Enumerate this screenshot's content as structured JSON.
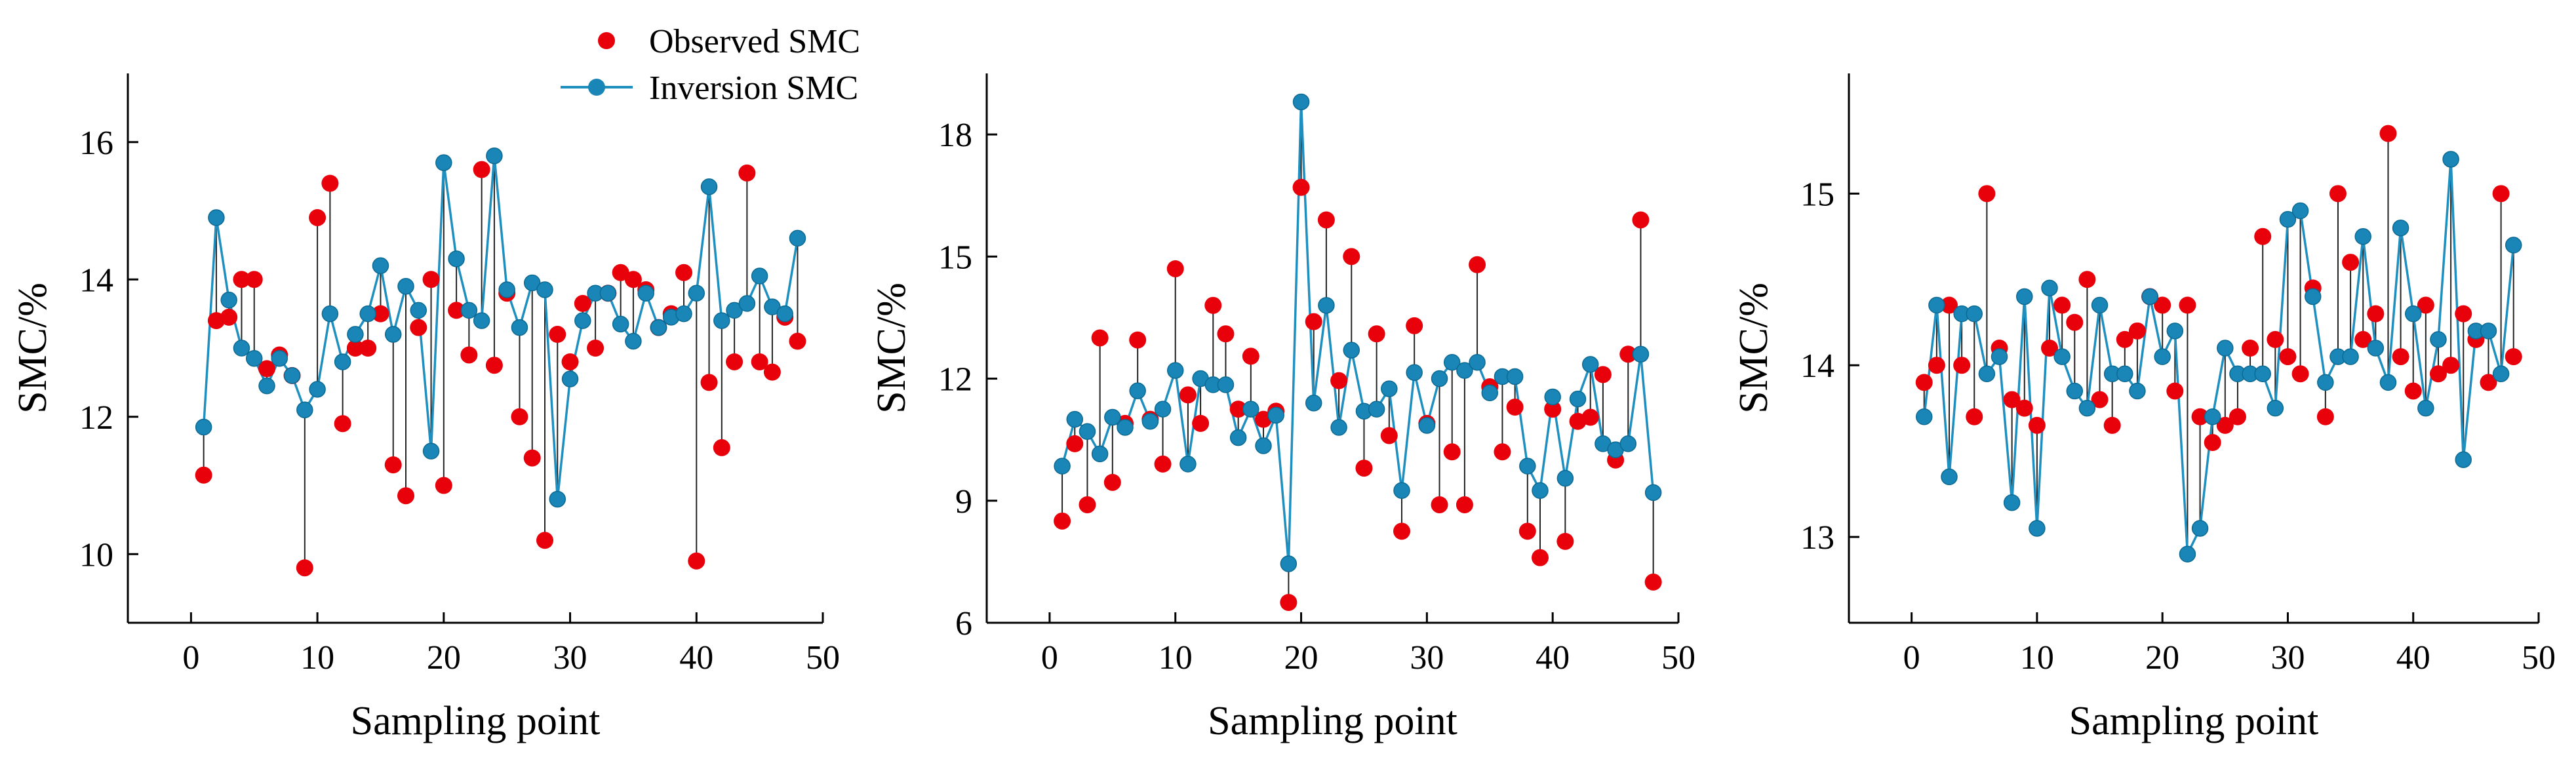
{
  "legend": {
    "observed_label": "Observed SMC",
    "inversion_label": "Inversion SMC"
  },
  "colors": {
    "observed": "#e8000b",
    "inversion_line": "#1f8fbf",
    "inversion_marker": "#1a86b7",
    "error_bar": "#222222",
    "axis": "#000000"
  },
  "chart_data": [
    {
      "type": "line",
      "xlabel": "Sampling point",
      "ylabel": "SMC/%",
      "xlim": [
        -5,
        50
      ],
      "ylim": [
        9,
        17
      ],
      "xticks": [
        0,
        10,
        20,
        30,
        40,
        50
      ],
      "yticks": [
        10,
        12,
        14,
        16
      ],
      "x": [
        1,
        2,
        3,
        4,
        5,
        6,
        7,
        8,
        9,
        10,
        11,
        12,
        13,
        14,
        15,
        16,
        17,
        18,
        19,
        20,
        21,
        22,
        23,
        24,
        25,
        26,
        27,
        28,
        29,
        30,
        31,
        32,
        33,
        34,
        35,
        36,
        37,
        38,
        39,
        40,
        41,
        42,
        43,
        44,
        45,
        46,
        47,
        48
      ],
      "series": [
        {
          "name": "Observed SMC",
          "values": [
            11.15,
            13.4,
            13.45,
            14.0,
            14.0,
            12.7,
            12.9,
            12.6,
            9.8,
            14.9,
            15.4,
            11.9,
            13.0,
            13.0,
            13.5,
            11.3,
            10.85,
            13.3,
            14.0,
            11.0,
            13.55,
            12.9,
            15.6,
            12.75,
            13.8,
            12.0,
            11.4,
            10.2,
            13.2,
            12.8,
            13.65,
            13.0,
            13.8,
            14.1,
            14.0,
            13.85,
            13.3,
            13.5,
            14.1,
            9.9,
            12.5,
            11.55,
            12.8,
            15.55,
            12.8,
            12.65,
            13.45,
            13.1
          ]
        },
        {
          "name": "Inversion SMC",
          "values": [
            11.85,
            14.9,
            13.7,
            13.0,
            12.85,
            12.45,
            12.85,
            12.6,
            12.1,
            12.4,
            13.5,
            12.8,
            13.2,
            13.5,
            14.2,
            13.2,
            13.9,
            13.55,
            11.5,
            15.7,
            14.3,
            13.55,
            13.4,
            15.8,
            13.85,
            13.3,
            13.95,
            13.85,
            10.8,
            12.55,
            13.4,
            13.8,
            13.8,
            13.35,
            13.1,
            13.8,
            13.3,
            13.45,
            13.5,
            13.8,
            15.35,
            13.4,
            13.55,
            13.65,
            14.05,
            13.6,
            13.5,
            14.6
          ]
        }
      ]
    },
    {
      "type": "line",
      "xlabel": "Sampling point",
      "ylabel": "SMC/%",
      "xlim": [
        -5,
        50
      ],
      "ylim": [
        6,
        19.5
      ],
      "xticks": [
        0,
        10,
        20,
        30,
        40,
        50
      ],
      "yticks": [
        6,
        9,
        12,
        15,
        18
      ],
      "x": [
        1,
        2,
        3,
        4,
        5,
        6,
        7,
        8,
        9,
        10,
        11,
        12,
        13,
        14,
        15,
        16,
        17,
        18,
        19,
        20,
        21,
        22,
        23,
        24,
        25,
        26,
        27,
        28,
        29,
        30,
        31,
        32,
        33,
        34,
        35,
        36,
        37,
        38,
        39,
        40,
        41,
        42,
        43,
        44,
        45,
        46,
        47,
        48
      ],
      "series": [
        {
          "name": "Observed SMC",
          "values": [
            8.5,
            10.4,
            8.9,
            13.0,
            9.45,
            10.9,
            12.95,
            11.0,
            9.9,
            14.7,
            11.6,
            10.9,
            13.8,
            13.1,
            11.25,
            12.55,
            11.0,
            11.2,
            6.5,
            16.7,
            13.4,
            15.9,
            11.95,
            15.0,
            9.8,
            13.1,
            10.6,
            8.25,
            13.3,
            10.9,
            8.9,
            10.2,
            8.9,
            14.8,
            11.8,
            10.2,
            11.3,
            8.25,
            7.6,
            11.25,
            8.0,
            10.95,
            11.05,
            12.1,
            10.0,
            12.6,
            15.9,
            7.0
          ]
        },
        {
          "name": "Inversion SMC",
          "values": [
            9.85,
            11.0,
            10.7,
            10.15,
            11.05,
            10.8,
            11.7,
            10.95,
            11.25,
            12.2,
            9.9,
            12.0,
            11.85,
            11.85,
            10.55,
            11.25,
            10.35,
            11.1,
            7.45,
            18.8,
            11.4,
            13.8,
            10.8,
            12.7,
            11.2,
            11.25,
            11.75,
            9.25,
            12.15,
            10.85,
            12.0,
            12.4,
            12.2,
            12.4,
            11.65,
            12.05,
            12.05,
            9.85,
            9.25,
            11.55,
            9.55,
            11.5,
            12.35,
            10.4,
            10.25,
            10.4,
            12.6,
            9.2
          ]
        }
      ]
    },
    {
      "type": "line",
      "xlabel": "Sampling point",
      "ylabel": "SMC/%",
      "xlim": [
        -5,
        50
      ],
      "ylim": [
        12.5,
        15.7
      ],
      "xticks": [
        0,
        10,
        20,
        30,
        40,
        50
      ],
      "yticks": [
        13,
        14,
        15
      ],
      "x": [
        1,
        2,
        3,
        4,
        5,
        6,
        7,
        8,
        9,
        10,
        11,
        12,
        13,
        14,
        15,
        16,
        17,
        18,
        19,
        20,
        21,
        22,
        23,
        24,
        25,
        26,
        27,
        28,
        29,
        30,
        31,
        32,
        33,
        34,
        35,
        36,
        37,
        38,
        39,
        40,
        41,
        42,
        43,
        44,
        45,
        46,
        47,
        48
      ],
      "series": [
        {
          "name": "Observed SMC",
          "values": [
            13.9,
            14.0,
            14.35,
            14.0,
            13.7,
            15.0,
            14.1,
            13.8,
            13.75,
            13.65,
            14.1,
            14.35,
            14.25,
            14.5,
            13.8,
            13.65,
            14.15,
            14.2,
            14.4,
            14.35,
            13.85,
            14.35,
            13.7,
            13.55,
            13.65,
            13.7,
            14.1,
            14.75,
            14.15,
            14.05,
            13.95,
            14.45,
            13.7,
            15.0,
            14.6,
            14.15,
            14.3,
            15.35,
            14.05,
            13.85,
            14.35,
            13.95,
            14.0,
            14.3,
            14.15,
            13.9,
            15.0,
            14.05
          ]
        },
        {
          "name": "Inversion SMC",
          "values": [
            13.7,
            14.35,
            13.35,
            14.3,
            14.3,
            13.95,
            14.05,
            13.2,
            14.4,
            13.05,
            14.45,
            14.05,
            13.85,
            13.75,
            14.35,
            13.95,
            13.95,
            13.85,
            14.4,
            14.05,
            14.2,
            12.9,
            13.05,
            13.7,
            14.1,
            13.95,
            13.95,
            13.95,
            13.75,
            14.85,
            14.9,
            14.4,
            13.9,
            14.05,
            14.05,
            14.75,
            14.1,
            13.9,
            14.8,
            14.3,
            13.75,
            14.15,
            15.2,
            13.45,
            14.2,
            14.2,
            13.95,
            14.7
          ]
        }
      ]
    }
  ]
}
